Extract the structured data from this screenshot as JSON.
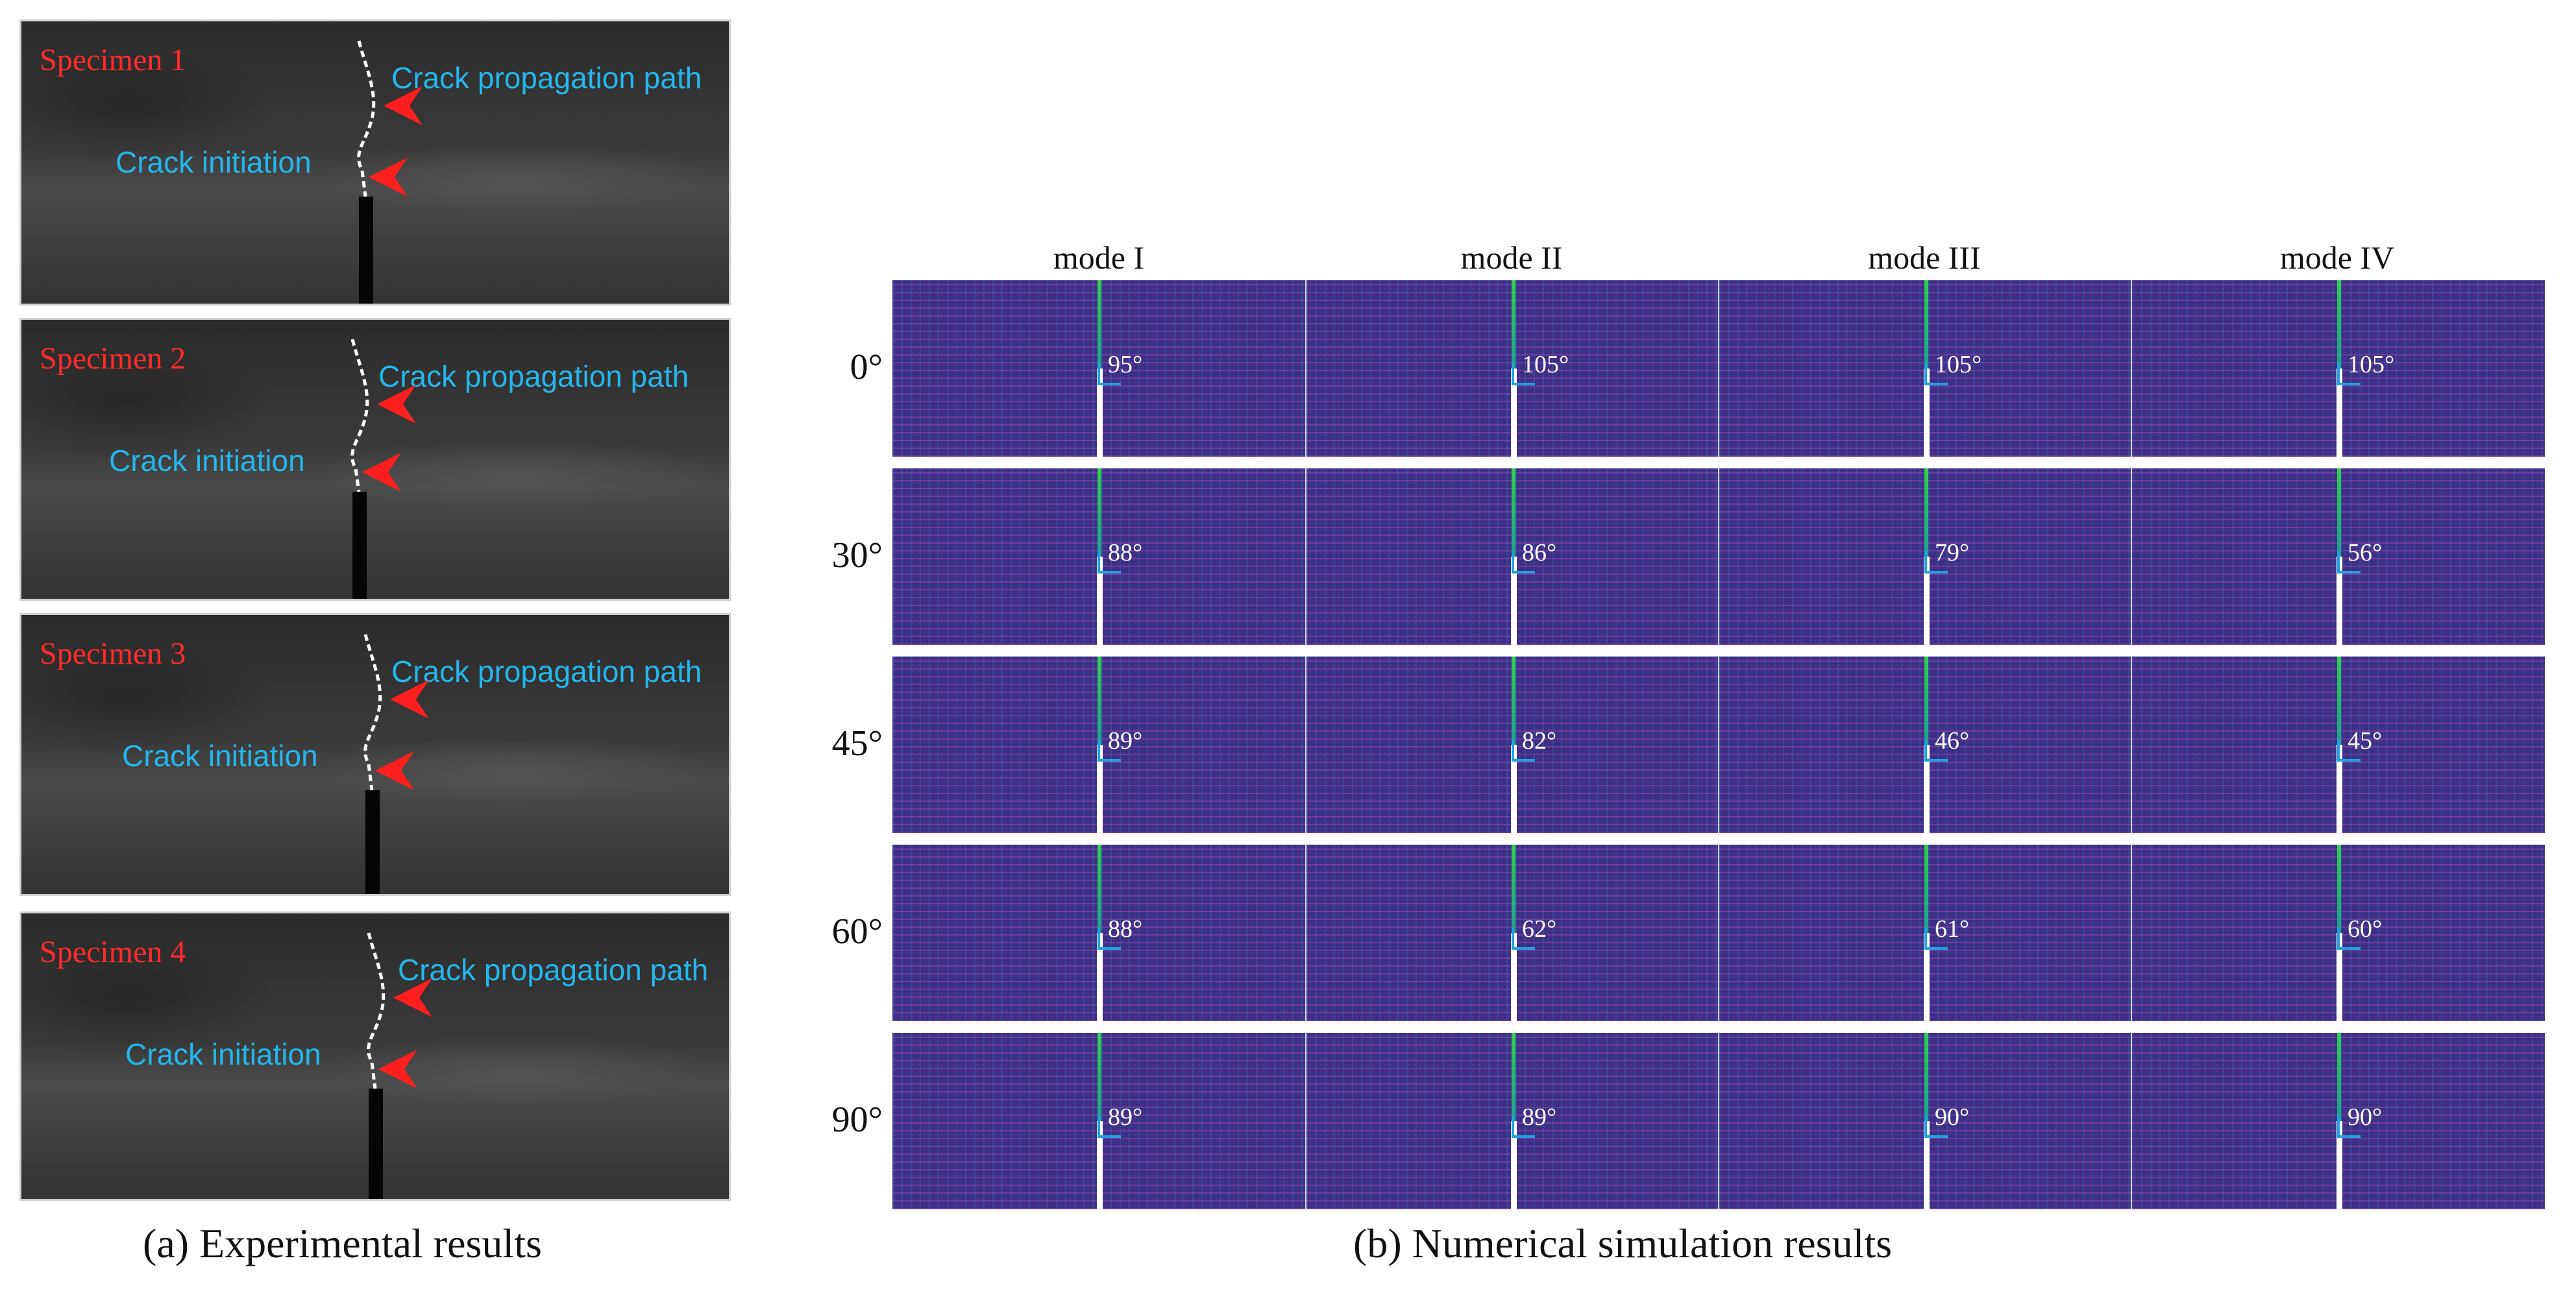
{
  "experimental": {
    "caption": "(a) Experimental results",
    "path_label": "Crack propagation path",
    "init_label": "Crack initiation",
    "specimens": [
      {
        "label": "Specimen 1"
      },
      {
        "label": "Specimen 2"
      },
      {
        "label": "Specimen 3"
      },
      {
        "label": "Specimen 4"
      }
    ]
  },
  "simulation": {
    "caption": "(b) Numerical simulation results",
    "modes": [
      "mode  I",
      "mode  II",
      "mode  III",
      "mode  IV"
    ],
    "rows": [
      {
        "angle": "0°",
        "values": [
          "95°",
          "105°",
          "105°",
          "105°"
        ]
      },
      {
        "angle": "30°",
        "values": [
          "88°",
          "86°",
          "79°",
          "56°"
        ]
      },
      {
        "angle": "45°",
        "values": [
          "89°",
          "82°",
          "46°",
          "45°"
        ]
      },
      {
        "angle": "60°",
        "values": [
          "88°",
          "62°",
          "61°",
          "60°"
        ]
      },
      {
        "angle": "90°",
        "values": [
          "89°",
          "89°",
          "90°",
          "90°"
        ]
      }
    ]
  },
  "colors": {
    "specimen_label": "#ff2a2a",
    "annotation": "#25b6ec",
    "arrow": "#ff1f1f",
    "sim_background": "#3c2f86",
    "crack": "#2fd34a"
  }
}
